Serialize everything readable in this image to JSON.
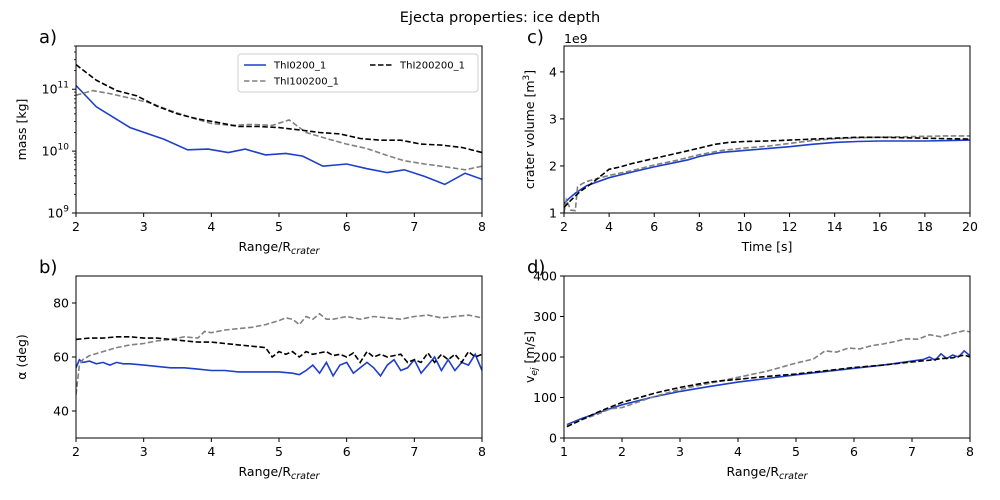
{
  "figure": {
    "title": "Ejecta properties: ice depth"
  },
  "colors": {
    "series1": "#1f3fc8",
    "series2": "#808080",
    "series3": "#000000"
  },
  "chart_data": [
    {
      "panel": "a)",
      "type": "line",
      "xlabel": "Range/R",
      "xlabel_sub": "crater",
      "ylabel": "mass [kg]",
      "xlim": [
        2,
        8
      ],
      "ylim": [
        1000000000.0,
        500000000000.0
      ],
      "yscale": "log",
      "xticks": [
        2,
        3,
        4,
        5,
        6,
        7,
        8
      ],
      "yticks": [
        {
          "v": 1000000000.0,
          "base": "10",
          "exp": "9"
        },
        {
          "v": 10000000000.0,
          "base": "10",
          "exp": "10"
        },
        {
          "v": 100000000000.0,
          "base": "10",
          "exp": "11"
        }
      ],
      "legend": {
        "position": "top-right",
        "columns": 2,
        "entries": [
          "ThI0200_1",
          "ThI100200_1",
          "ThI200200_1"
        ]
      },
      "series": [
        {
          "name": "ThI0200_1",
          "style": "solid",
          "x": [
            2.0,
            2.3,
            2.8,
            3.3,
            3.65,
            3.95,
            4.25,
            4.5,
            4.8,
            5.1,
            5.35,
            5.65,
            6.0,
            6.3,
            6.6,
            6.85,
            7.15,
            7.45,
            7.75,
            8.0
          ],
          "y": [
            115000000000.0,
            52000000000.0,
            24000000000.0,
            15500000000.0,
            10500000000.0,
            10800000000.0,
            9500000000.0,
            10800000000.0,
            8700000000.0,
            9200000000.0,
            8300000000.0,
            5700000000.0,
            6200000000.0,
            5200000000.0,
            4500000000.0,
            5000000000.0,
            3900000000.0,
            2900000000.0,
            4400000000.0,
            3500000000.0
          ]
        },
        {
          "name": "ThI100200_1",
          "style": "dashed",
          "x": [
            2.0,
            2.25,
            2.5,
            2.8,
            3.1,
            3.4,
            3.7,
            4.0,
            4.3,
            4.6,
            4.9,
            5.15,
            5.4,
            5.7,
            6.0,
            6.3,
            6.6,
            6.85,
            7.15,
            7.45,
            7.75,
            8.0
          ],
          "y": [
            80000000000.0,
            95000000000.0,
            85000000000.0,
            72000000000.0,
            60000000000.0,
            45000000000.0,
            35000000000.0,
            28000000000.0,
            26000000000.0,
            27000000000.0,
            26000000000.0,
            32000000000.0,
            20000000000.0,
            16000000000.0,
            13000000000.0,
            11000000000.0,
            8500000000.0,
            7000000000.0,
            6200000000.0,
            5600000000.0,
            5000000000.0,
            5700000000.0
          ]
        },
        {
          "name": "ThI200200_1",
          "style": "dashed",
          "x": [
            2.0,
            2.3,
            2.6,
            2.9,
            3.2,
            3.5,
            3.8,
            4.1,
            4.4,
            4.7,
            5.0,
            5.3,
            5.6,
            5.9,
            6.2,
            6.5,
            6.8,
            7.1,
            7.4,
            7.7,
            8.0
          ],
          "y": [
            250000000000.0,
            140000000000.0,
            95000000000.0,
            78000000000.0,
            53000000000.0,
            40000000000.0,
            33000000000.0,
            29000000000.0,
            25000000000.0,
            25000000000.0,
            24000000000.0,
            22000000000.0,
            20000000000.0,
            19000000000.0,
            16000000000.0,
            15000000000.0,
            15000000000.0,
            13000000000.0,
            12500000000.0,
            11500000000.0,
            9500000000.0
          ]
        }
      ]
    },
    {
      "panel": "c)",
      "type": "line",
      "xlabel": "Time [s]",
      "ylabel": "crater volume [m",
      "ylabel_sup": "3",
      "ylabel_close": "]",
      "offset_text": "1e9",
      "xlim": [
        2,
        20
      ],
      "ylim": [
        1,
        4.55
      ],
      "xticks": [
        2,
        4,
        6,
        8,
        10,
        12,
        14,
        16,
        18,
        20
      ],
      "yticks": [
        1,
        2,
        3,
        4
      ],
      "series": [
        {
          "name": "ThI0200_1",
          "style": "solid",
          "x": [
            2.0,
            2.2,
            2.5,
            3.0,
            4.0,
            5.0,
            6.0,
            7.0,
            7.5,
            8.0,
            8.5,
            9.0,
            9.5,
            10.0,
            11.0,
            12.0,
            13.0,
            14.0,
            15.0,
            16.0,
            17.0,
            18.0,
            19.0,
            20.0
          ],
          "y": [
            1.2,
            1.3,
            1.42,
            1.58,
            1.75,
            1.87,
            1.98,
            2.08,
            2.13,
            2.2,
            2.25,
            2.29,
            2.31,
            2.33,
            2.37,
            2.41,
            2.46,
            2.5,
            2.52,
            2.53,
            2.53,
            2.53,
            2.54,
            2.55
          ]
        },
        {
          "name": "ThI100200_1",
          "style": "dashed",
          "x": [
            2.0,
            2.1,
            2.3,
            2.5,
            2.6,
            2.8,
            3.0,
            4.0,
            5.0,
            6.0,
            7.0,
            8.0,
            9.0,
            10.0,
            11.0,
            12.0,
            13.0,
            14.0,
            15.0,
            16.0,
            17.0,
            18.0,
            19.0,
            20.0
          ],
          "y": [
            1.0,
            1.28,
            1.06,
            1.05,
            1.55,
            1.62,
            1.67,
            1.8,
            1.9,
            2.02,
            2.12,
            2.24,
            2.33,
            2.38,
            2.42,
            2.48,
            2.54,
            2.58,
            2.6,
            2.61,
            2.62,
            2.63,
            2.64,
            2.64
          ]
        },
        {
          "name": "ThI200200_1",
          "style": "dashed",
          "x": [
            2.0,
            2.3,
            2.7,
            3.2,
            4.0,
            4.5,
            5.0,
            6.0,
            7.0,
            8.0,
            8.7,
            9.3,
            10.0,
            11.0,
            12.0,
            13.0,
            14.0,
            15.0,
            16.0,
            17.0,
            18.0,
            19.0,
            20.0
          ],
          "y": [
            1.12,
            1.27,
            1.45,
            1.62,
            1.93,
            1.98,
            2.05,
            2.16,
            2.27,
            2.38,
            2.46,
            2.5,
            2.52,
            2.53,
            2.55,
            2.57,
            2.59,
            2.61,
            2.61,
            2.6,
            2.59,
            2.58,
            2.57
          ]
        }
      ]
    },
    {
      "panel": "b)",
      "type": "line",
      "xlabel": "Range/R",
      "xlabel_sub": "crater",
      "ylabel": "α (deg)",
      "xlim": [
        2,
        8
      ],
      "ylim": [
        30,
        90
      ],
      "xticks": [
        2,
        3,
        4,
        5,
        6,
        7,
        8
      ],
      "yticks": [
        40,
        60,
        80
      ],
      "series": [
        {
          "name": "ThI0200_1",
          "style": "solid",
          "x": [
            2.0,
            2.05,
            2.1,
            2.2,
            2.3,
            2.4,
            2.5,
            2.6,
            2.7,
            2.8,
            3.0,
            3.2,
            3.4,
            3.6,
            3.8,
            4.0,
            4.2,
            4.4,
            4.6,
            4.8,
            5.0,
            5.2,
            5.3,
            5.4,
            5.5,
            5.6,
            5.7,
            5.8,
            5.9,
            6.0,
            6.1,
            6.2,
            6.3,
            6.4,
            6.5,
            6.6,
            6.7,
            6.8,
            6.9,
            7.0,
            7.1,
            7.2,
            7.3,
            7.4,
            7.5,
            7.6,
            7.7,
            7.8,
            7.9,
            8.0
          ],
          "y": [
            56,
            59,
            58,
            58.5,
            57.5,
            58,
            57,
            58,
            57.5,
            57.5,
            57,
            56.5,
            56,
            56,
            55.5,
            55,
            55,
            54.5,
            54.5,
            54.5,
            54.5,
            54,
            53.5,
            55,
            57,
            54,
            58,
            53,
            57,
            58,
            54,
            56,
            58,
            56,
            53,
            57,
            59,
            55,
            56,
            59,
            54,
            57,
            60,
            55,
            59,
            55,
            58,
            57,
            61,
            55
          ]
        },
        {
          "name": "ThI100200_1",
          "style": "dashed",
          "x": [
            2.0,
            2.05,
            2.1,
            2.2,
            2.4,
            2.6,
            2.8,
            3.0,
            3.2,
            3.4,
            3.6,
            3.8,
            3.9,
            4.0,
            4.2,
            4.4,
            4.6,
            4.8,
            5.0,
            5.1,
            5.2,
            5.3,
            5.4,
            5.5,
            5.6,
            5.7,
            5.8,
            6.0,
            6.2,
            6.4,
            6.6,
            6.8,
            7.0,
            7.2,
            7.4,
            7.6,
            7.8,
            8.0
          ],
          "y": [
            46,
            57,
            59,
            60.5,
            62,
            63.5,
            64.5,
            65,
            66,
            66.5,
            67.5,
            67,
            69.5,
            69,
            70,
            70.5,
            71,
            72,
            73.5,
            74.5,
            74,
            72,
            75,
            74,
            76,
            74,
            74,
            75,
            74,
            75,
            74.5,
            74,
            75,
            75.5,
            74.5,
            75,
            75.5,
            74.5
          ]
        },
        {
          "name": "ThI200200_1",
          "style": "dashed",
          "x": [
            2.0,
            2.2,
            2.4,
            2.6,
            2.8,
            3.0,
            3.2,
            3.4,
            3.6,
            3.8,
            4.0,
            4.2,
            4.4,
            4.6,
            4.8,
            4.9,
            5.0,
            5.1,
            5.2,
            5.3,
            5.4,
            5.5,
            5.6,
            5.7,
            5.8,
            5.9,
            6.0,
            6.1,
            6.2,
            6.3,
            6.4,
            6.5,
            6.6,
            6.7,
            6.8,
            6.9,
            7.0,
            7.1,
            7.2,
            7.3,
            7.4,
            7.5,
            7.6,
            7.7,
            7.8,
            7.9,
            8.0
          ],
          "y": [
            66.5,
            67,
            67,
            67.5,
            67.5,
            67,
            67,
            66.5,
            66,
            65.5,
            65.5,
            65,
            64.5,
            64,
            63.5,
            60,
            62,
            61,
            62,
            60,
            62,
            61,
            61.5,
            62,
            60.5,
            61,
            60,
            61.5,
            58,
            62,
            60,
            61,
            60,
            60.5,
            61,
            58,
            59,
            58,
            61.5,
            58,
            61,
            59,
            61,
            58,
            62,
            60,
            61
          ]
        }
      ]
    },
    {
      "panel": "d)",
      "type": "line",
      "xlabel": "Range/R",
      "xlabel_sub": "crater",
      "ylabel": "v",
      "ylabel_sub": "ej",
      "ylabel_close": " [m/s]",
      "xlim": [
        1,
        8
      ],
      "ylim": [
        0,
        400
      ],
      "xticks": [
        1,
        2,
        3,
        4,
        5,
        6,
        7,
        8
      ],
      "yticks": [
        0,
        100,
        200,
        300,
        400
      ],
      "series": [
        {
          "name": "ThI0200_1",
          "style": "solid",
          "x": [
            1.05,
            1.3,
            1.6,
            2.0,
            2.5,
            3.0,
            3.5,
            4.0,
            4.5,
            5.0,
            5.5,
            6.0,
            6.5,
            6.8,
            7.0,
            7.2,
            7.3,
            7.4,
            7.5,
            7.6,
            7.7,
            7.8,
            7.9,
            8.0
          ],
          "y": [
            33,
            48,
            63,
            82,
            100,
            115,
            127,
            138,
            147,
            156,
            164,
            172,
            180,
            186,
            190,
            194,
            200,
            192,
            208,
            196,
            205,
            200,
            215,
            203
          ]
        },
        {
          "name": "ThI100200_1",
          "style": "dashed",
          "x": [
            1.05,
            1.3,
            1.6,
            1.8,
            2.0,
            2.2,
            2.5,
            3.0,
            3.5,
            4.0,
            4.5,
            5.0,
            5.3,
            5.5,
            5.7,
            5.9,
            6.1,
            6.3,
            6.5,
            6.7,
            6.9,
            7.1,
            7.3,
            7.5,
            7.7,
            7.9,
            8.0
          ],
          "y": [
            30,
            45,
            60,
            72,
            75,
            85,
            100,
            120,
            135,
            150,
            165,
            185,
            195,
            215,
            212,
            222,
            220,
            228,
            232,
            238,
            245,
            244,
            255,
            250,
            258,
            265,
            262
          ]
        },
        {
          "name": "ThI200200_1",
          "style": "dashed",
          "x": [
            1.05,
            1.3,
            1.6,
            2.0,
            2.3,
            2.6,
            3.0,
            3.5,
            4.0,
            4.5,
            5.0,
            5.5,
            6.0,
            6.5,
            7.0,
            7.3,
            7.5,
            7.7,
            7.9,
            8.0
          ],
          "y": [
            28,
            45,
            65,
            88,
            100,
            112,
            125,
            138,
            145,
            152,
            158,
            166,
            174,
            180,
            188,
            192,
            196,
            198,
            205,
            200
          ]
        }
      ]
    }
  ]
}
